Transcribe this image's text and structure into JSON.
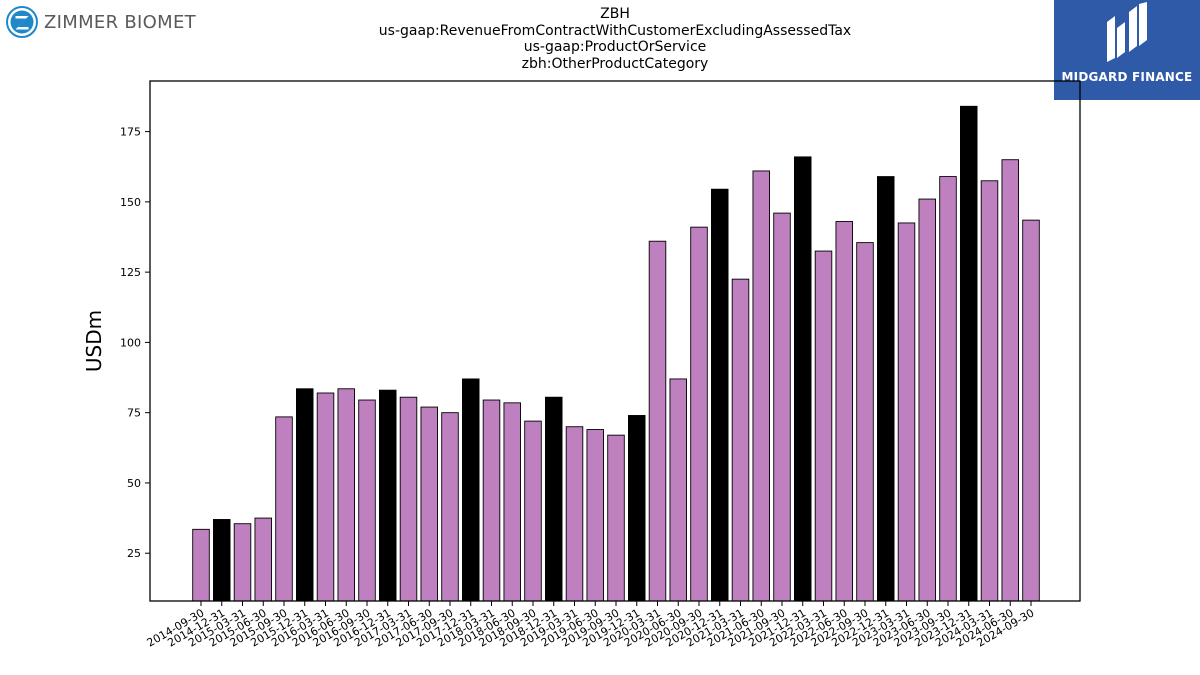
{
  "header": {
    "company_logo_text": "ZIMMER BIOMET",
    "partner_logo_text": "MIDGARD FINANCE"
  },
  "colors": {
    "bar_default": "#bf80bf",
    "bar_highlight": "#000000",
    "partner_bg": "#2f5aa8"
  },
  "chart_data": {
    "type": "bar",
    "title_lines": [
      "ZBH",
      "us-gaap:RevenueFromContractWithCustomerExcludingAssessedTax",
      "us-gaap:ProductOrService",
      "zbh:OtherProductCategory"
    ],
    "xlabel": "",
    "ylabel": "USDm",
    "ylim": [
      8,
      193
    ],
    "yticks": [
      25,
      50,
      75,
      100,
      125,
      150,
      175
    ],
    "grid": false,
    "categories": [
      "2014-09-30",
      "2014-12-31",
      "2015-03-31",
      "2015-06-30",
      "2015-09-30",
      "2015-12-31",
      "2016-03-31",
      "2016-06-30",
      "2016-09-30",
      "2016-12-31",
      "2017-03-31",
      "2017-06-30",
      "2017-09-30",
      "2017-12-31",
      "2018-03-31",
      "2018-06-30",
      "2018-09-30",
      "2018-12-31",
      "2019-03-31",
      "2019-06-30",
      "2019-09-30",
      "2019-12-31",
      "2020-03-31",
      "2020-06-30",
      "2020-09-30",
      "2020-12-31",
      "2021-03-31",
      "2021-06-30",
      "2021-09-30",
      "2021-12-31",
      "2022-03-31",
      "2022-06-30",
      "2022-09-30",
      "2022-12-31",
      "2023-03-31",
      "2023-06-30",
      "2023-09-30",
      "2023-12-31",
      "2024-03-31",
      "2024-06-30",
      "2024-09-30"
    ],
    "values": [
      33.5,
      37.0,
      35.5,
      37.5,
      73.5,
      83.5,
      82.0,
      83.5,
      79.5,
      83.0,
      80.5,
      77.0,
      75.0,
      87.0,
      79.5,
      78.5,
      72.0,
      80.5,
      70.0,
      69.0,
      67.0,
      74.0,
      136.0,
      87.0,
      141.0,
      154.5,
      122.5,
      161.0,
      146.0,
      166.0,
      132.5,
      143.0,
      135.5,
      159.0,
      142.5,
      151.0,
      159.0,
      184.0,
      157.5,
      165.0,
      143.5
    ],
    "highlight_categories": [
      "2014-12-31",
      "2015-12-31",
      "2016-12-31",
      "2017-12-31",
      "2018-12-31",
      "2019-12-31",
      "2020-12-31",
      "2021-12-31",
      "2022-12-31",
      "2023-12-31"
    ]
  }
}
